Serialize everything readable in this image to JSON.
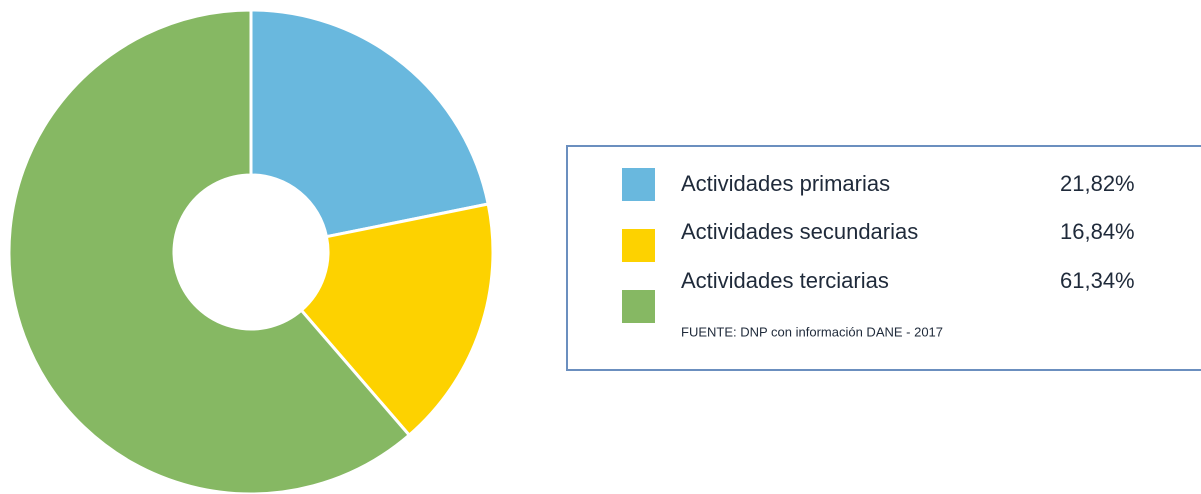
{
  "chart_data": {
    "type": "pie",
    "categories": [
      "Actividades primarias",
      "Actividades secundarias",
      "Actividades terciarias"
    ],
    "values": [
      21.82,
      16.84,
      61.34
    ],
    "value_labels": [
      "21,82%",
      "16,84%",
      "61,34%"
    ],
    "colors": [
      "#69b8de",
      "#fdd200",
      "#86b863"
    ],
    "source": "FUENTE: DNP con información DANE - 2017"
  }
}
